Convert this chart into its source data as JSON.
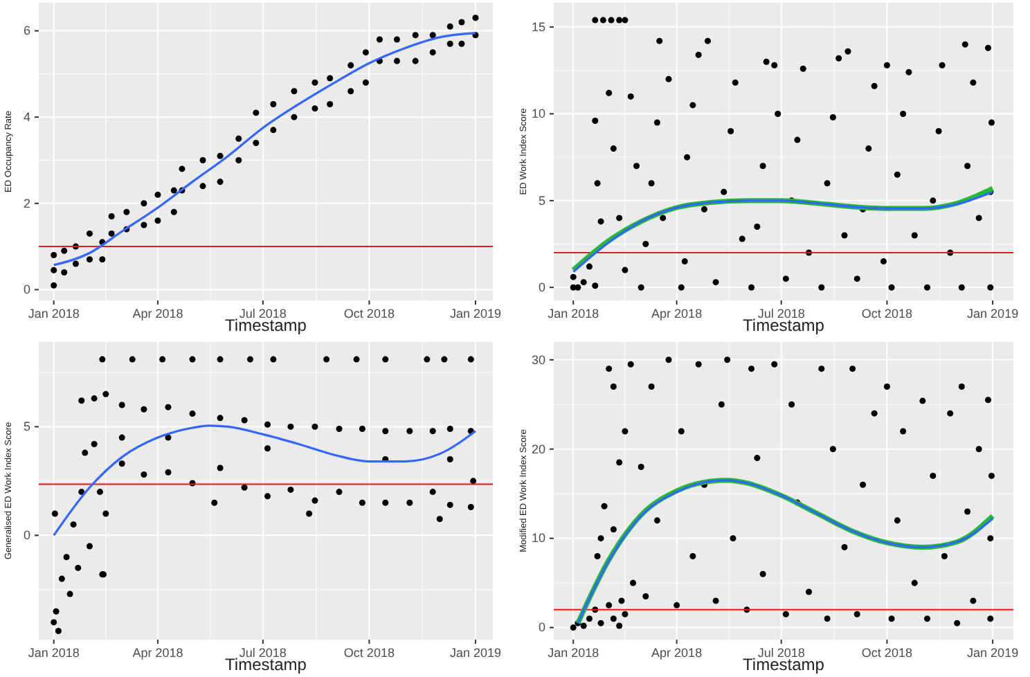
{
  "chart_data": [
    {
      "type": "scatter",
      "xlabel": "Timestamp",
      "ylabel": "ED Occupancy Rate",
      "grid": true,
      "xlim": [
        "2017-12-19",
        "2019-01-16"
      ],
      "xticks": [
        {
          "value": "2018-01-01",
          "label": "Jan 2018"
        },
        {
          "value": "2018-04-01",
          "label": "Apr 2018"
        },
        {
          "value": "2018-07-01",
          "label": "Jul 2018"
        },
        {
          "value": "2018-10-01",
          "label": "Oct 2018"
        },
        {
          "value": "2019-01-01",
          "label": "Jan 2019"
        }
      ],
      "ylim": [
        -0.25,
        6.65
      ],
      "yticks": [
        0,
        2,
        4,
        6
      ],
      "series": [
        {
          "marker": "circle",
          "color": "#000000",
          "x": [
            "2018-01-01",
            "2018-01-01",
            "2018-01-01",
            "2018-01-10",
            "2018-01-10",
            "2018-01-20",
            "2018-01-20",
            "2018-02-01",
            "2018-02-01",
            "2018-02-12",
            "2018-02-12",
            "2018-02-20",
            "2018-02-20",
            "2018-03-05",
            "2018-03-05",
            "2018-03-20",
            "2018-03-20",
            "2018-04-01",
            "2018-04-01",
            "2018-04-15",
            "2018-04-15",
            "2018-04-22",
            "2018-04-22",
            "2018-05-10",
            "2018-05-10",
            "2018-05-25",
            "2018-05-25",
            "2018-06-10",
            "2018-06-10",
            "2018-06-25",
            "2018-06-25",
            "2018-07-10",
            "2018-07-10",
            "2018-07-28",
            "2018-07-28",
            "2018-08-15",
            "2018-08-15",
            "2018-08-28",
            "2018-08-28",
            "2018-09-15",
            "2018-09-15",
            "2018-09-28",
            "2018-09-28",
            "2018-10-10",
            "2018-10-10",
            "2018-10-25",
            "2018-10-25",
            "2018-11-10",
            "2018-11-10",
            "2018-11-25",
            "2018-11-25",
            "2018-12-10",
            "2018-12-10",
            "2018-12-20",
            "2018-12-20",
            "2019-01-01",
            "2019-01-01"
          ],
          "values": [
            0.1,
            0.45,
            0.8,
            0.4,
            0.9,
            0.6,
            1.0,
            0.7,
            1.3,
            0.7,
            1.1,
            1.3,
            1.7,
            1.4,
            1.8,
            1.5,
            2.0,
            1.6,
            2.2,
            1.8,
            2.3,
            2.3,
            2.8,
            2.4,
            3.0,
            2.5,
            3.1,
            3.0,
            3.5,
            3.4,
            4.1,
            3.7,
            4.3,
            4.0,
            4.6,
            4.2,
            4.8,
            4.3,
            4.9,
            4.6,
            5.2,
            4.8,
            5.5,
            5.3,
            5.8,
            5.3,
            5.8,
            5.3,
            5.9,
            5.5,
            5.9,
            5.7,
            6.1,
            5.7,
            6.2,
            5.9,
            6.3
          ]
        },
        {
          "type": "line",
          "color": "#3366ff",
          "x": [
            "2018-01-01",
            "2018-02-01",
            "2018-03-01",
            "2018-04-01",
            "2018-05-01",
            "2018-06-01",
            "2018-07-01",
            "2018-08-01",
            "2018-09-01",
            "2018-10-01",
            "2018-11-01",
            "2018-12-01",
            "2019-01-01"
          ],
          "values": [
            0.57,
            0.85,
            1.35,
            1.9,
            2.5,
            3.1,
            3.75,
            4.3,
            4.8,
            5.25,
            5.6,
            5.85,
            5.95
          ]
        }
      ],
      "ref_lines": [
        {
          "axis": "y",
          "value": 1,
          "color": "#e41a1c"
        }
      ]
    },
    {
      "type": "scatter",
      "xlabel": "Timestamp",
      "ylabel": "ED Work Index Score",
      "grid": true,
      "xlim": [
        "2017-12-15",
        "2019-01-19"
      ],
      "xticks": [
        {
          "value": "2018-01-01",
          "label": "Jan 2018"
        },
        {
          "value": "2018-04-01",
          "label": "Apr 2018"
        },
        {
          "value": "2018-07-01",
          "label": "Jul 2018"
        },
        {
          "value": "2018-10-01",
          "label": "Oct 2018"
        },
        {
          "value": "2019-01-01",
          "label": "Jan 2019"
        }
      ],
      "ylim": [
        -0.75,
        16.4
      ],
      "yticks": [
        0,
        5,
        10,
        15
      ],
      "series": [
        {
          "marker": "circle",
          "color": "#000000",
          "x": [
            "2018-01-01",
            "2018-01-01",
            "2018-01-05",
            "2018-01-10",
            "2018-01-15",
            "2018-01-20",
            "2018-01-20",
            "2018-01-27",
            "2018-02-03",
            "2018-02-10",
            "2018-02-15",
            "2018-01-20",
            "2018-01-22",
            "2018-01-25",
            "2018-02-01",
            "2018-02-05",
            "2018-02-10",
            "2018-02-15",
            "2018-02-20",
            "2018-02-25",
            "2018-03-01",
            "2018-03-05",
            "2018-03-10",
            "2018-03-15",
            "2018-03-17",
            "2018-03-25",
            "2018-03-20",
            "2018-04-05",
            "2018-04-08",
            "2018-04-10",
            "2018-04-15",
            "2018-04-20",
            "2018-04-28",
            "2018-04-25",
            "2018-05-05",
            "2018-05-12",
            "2018-05-18",
            "2018-05-22",
            "2018-05-28",
            "2018-06-05",
            "2018-06-10",
            "2018-06-15",
            "2018-06-18",
            "2018-06-25",
            "2018-06-28",
            "2018-07-05",
            "2018-07-10",
            "2018-07-15",
            "2018-07-20",
            "2018-07-25",
            "2018-08-05",
            "2018-08-10",
            "2018-08-15",
            "2018-08-20",
            "2018-08-28",
            "2018-08-25",
            "2018-09-05",
            "2018-09-10",
            "2018-09-15",
            "2018-09-20",
            "2018-09-28",
            "2018-10-01",
            "2018-10-05",
            "2018-10-10",
            "2018-10-15",
            "2018-10-20",
            "2018-10-25",
            "2018-11-05",
            "2018-11-10",
            "2018-11-15",
            "2018-11-18",
            "2018-11-25",
            "2018-12-05",
            "2018-12-08",
            "2018-12-10",
            "2018-12-15",
            "2018-12-20",
            "2018-12-28",
            "2018-12-30",
            "2018-12-30",
            "2018-12-31"
          ],
          "values": [
            0,
            0.6,
            0,
            0.3,
            1.2,
            0.1,
            15.4,
            15.4,
            15.4,
            15.4,
            15.4,
            9.6,
            6,
            3.8,
            11.2,
            8,
            4,
            1,
            11,
            7,
            0,
            2.5,
            6,
            9.5,
            14.2,
            12,
            4,
            0,
            1.5,
            7.5,
            10.5,
            13.4,
            14.2,
            4.5,
            0.3,
            5.5,
            9,
            11.8,
            2.8,
            0,
            3.5,
            7,
            13,
            12.8,
            10,
            0.5,
            5,
            8.5,
            12.6,
            2,
            0,
            6,
            9.8,
            13.2,
            13.6,
            3,
            0.5,
            4.5,
            8,
            11.6,
            1.5,
            12.8,
            0,
            6.5,
            10,
            12.4,
            3,
            0,
            5,
            9,
            12.8,
            2,
            0,
            14,
            7,
            11.8,
            4,
            13.8,
            0,
            5.5,
            9.5
          ]
        },
        {
          "type": "line",
          "color": "#22bb33",
          "x": [
            "2018-01-01",
            "2018-02-01",
            "2018-03-01",
            "2018-04-01",
            "2018-05-01",
            "2018-06-01",
            "2018-07-01",
            "2018-08-01",
            "2018-09-01",
            "2018-10-01",
            "2018-11-01",
            "2018-12-01",
            "2019-01-01"
          ],
          "values": [
            1.0,
            2.7,
            3.8,
            4.6,
            4.9,
            5.0,
            5.0,
            4.85,
            4.65,
            4.55,
            4.55,
            4.85,
            5.7
          ]
        },
        {
          "type": "line",
          "color": "#3366ff",
          "x": [
            "2018-01-01",
            "2018-02-01",
            "2018-03-01",
            "2018-04-01",
            "2018-05-01",
            "2018-06-01",
            "2018-07-01",
            "2018-08-01",
            "2018-09-01",
            "2018-10-01",
            "2018-11-01",
            "2018-12-01",
            "2019-01-01"
          ],
          "values": [
            0.9,
            2.6,
            3.8,
            4.6,
            4.9,
            5.0,
            5.0,
            4.85,
            4.65,
            4.55,
            4.55,
            4.8,
            5.5
          ]
        }
      ],
      "ref_lines": [
        {
          "axis": "y",
          "value": 2,
          "color": "#e41a1c"
        }
      ]
    },
    {
      "type": "scatter",
      "xlabel": "Timestamp",
      "ylabel": "Generalised ED Work Index Score",
      "grid": true,
      "xlim": [
        "2017-12-19",
        "2019-01-16"
      ],
      "xticks": [
        {
          "value": "2018-01-01",
          "label": "Jan 2018"
        },
        {
          "value": "2018-04-01",
          "label": "Apr 2018"
        },
        {
          "value": "2018-07-01",
          "label": "Jul 2018"
        },
        {
          "value": "2018-10-01",
          "label": "Oct 2018"
        },
        {
          "value": "2019-01-01",
          "label": "Jan 2019"
        }
      ],
      "ylim": [
        -4.8,
        8.9
      ],
      "yticks": [
        0,
        5
      ],
      "series": [
        {
          "marker": "circle",
          "color": "#000000",
          "x": [
            "2018-01-01",
            "2018-01-03",
            "2018-01-05",
            "2018-01-02",
            "2018-01-08",
            "2018-01-12",
            "2018-01-15",
            "2018-01-18",
            "2018-01-22",
            "2018-01-25",
            "2018-01-28",
            "2018-02-01",
            "2018-02-05",
            "2018-02-10",
            "2018-02-12",
            "2018-01-25",
            "2018-02-05",
            "2018-02-15",
            "2018-02-15",
            "2018-02-13",
            "2018-02-12",
            "2018-03-10",
            "2018-04-05",
            "2018-05-01",
            "2018-05-25",
            "2018-06-20",
            "2018-07-10",
            "2018-08-25",
            "2018-09-20",
            "2018-10-15",
            "2018-11-20",
            "2018-12-05",
            "2018-12-28",
            "2018-03-01",
            "2018-03-01",
            "2018-03-20",
            "2018-03-20",
            "2018-04-10",
            "2018-04-10",
            "2018-05-01",
            "2018-05-01",
            "2018-05-20",
            "2018-05-25",
            "2018-05-25",
            "2018-06-15",
            "2018-06-15",
            "2018-07-05",
            "2018-07-05",
            "2018-07-25",
            "2018-07-25",
            "2018-08-10",
            "2018-08-15",
            "2018-08-15",
            "2018-09-05",
            "2018-09-05",
            "2018-09-25",
            "2018-09-25",
            "2018-10-15",
            "2018-10-15",
            "2018-11-05",
            "2018-11-05",
            "2018-11-25",
            "2018-11-25",
            "2018-12-01",
            "2018-12-10",
            "2018-12-10",
            "2018-12-28",
            "2018-12-28",
            "2018-12-30",
            "2018-04-10",
            "2018-07-05",
            "2018-10-15",
            "2018-12-10",
            "2018-03-01"
          ],
          "values": [
            -4,
            -3.5,
            -4.4,
            1,
            -2,
            -1,
            -2.7,
            0.5,
            -1.5,
            2,
            3.8,
            -0.5,
            4.2,
            2,
            -1.8,
            6.2,
            6.3,
            6.5,
            1,
            -1.8,
            8.1,
            8.1,
            8.1,
            8.1,
            8.1,
            8.1,
            8.1,
            8.1,
            8.1,
            8.1,
            8.1,
            8.1,
            8.1,
            6,
            3.3,
            5.8,
            2.8,
            5.9,
            2.9,
            5.6,
            2.4,
            1.5,
            5.4,
            3.1,
            5.3,
            2.2,
            5.1,
            1.8,
            5.0,
            2.1,
            1.0,
            5.0,
            1.6,
            4.9,
            2.0,
            4.9,
            1.5,
            4.8,
            1.5,
            4.8,
            1.5,
            4.8,
            2.0,
            0.75,
            4.9,
            1.4,
            4.8,
            1.3,
            2.5,
            4.5,
            4,
            3.5,
            3.5,
            4.5
          ]
        },
        {
          "type": "line",
          "color": "#3366ff",
          "x": [
            "2018-01-01",
            "2018-02-01",
            "2018-03-01",
            "2018-04-01",
            "2018-05-01",
            "2018-05-15",
            "2018-06-01",
            "2018-07-01",
            "2018-08-01",
            "2018-09-01",
            "2018-10-01",
            "2018-11-01",
            "2018-12-01",
            "2019-01-01"
          ],
          "values": [
            0,
            2.2,
            3.6,
            4.5,
            4.95,
            5.05,
            5.0,
            4.65,
            4.2,
            3.7,
            3.4,
            3.4,
            3.75,
            4.8
          ]
        }
      ],
      "ref_lines": [
        {
          "axis": "y",
          "value": 2.35,
          "color": "#e41a1c"
        }
      ]
    },
    {
      "type": "scatter",
      "xlabel": "Timestamp",
      "ylabel": "Modified ED Work Index Score",
      "grid": true,
      "xlim": [
        "2017-12-15",
        "2019-01-19"
      ],
      "xticks": [
        {
          "value": "2018-01-01",
          "label": "Jan 2018"
        },
        {
          "value": "2018-04-01",
          "label": "Apr 2018"
        },
        {
          "value": "2018-07-01",
          "label": "Jul 2018"
        },
        {
          "value": "2018-10-01",
          "label": "Oct 2018"
        },
        {
          "value": "2019-01-01",
          "label": "Jan 2019"
        }
      ],
      "ylim": [
        -1.35,
        32
      ],
      "yticks": [
        0,
        10,
        20,
        30
      ],
      "series": [
        {
          "marker": "circle",
          "color": "#000000",
          "x": [
            "2018-01-01",
            "2018-01-05",
            "2018-01-10",
            "2018-01-15",
            "2018-01-20",
            "2018-01-25",
            "2018-02-01",
            "2018-02-05",
            "2018-02-10",
            "2018-02-12",
            "2018-02-15",
            "2018-01-22",
            "2018-01-25",
            "2018-01-28",
            "2018-02-01",
            "2018-02-05",
            "2018-02-05",
            "2018-02-10",
            "2018-02-15",
            "2018-02-20",
            "2018-02-22",
            "2018-03-01",
            "2018-03-05",
            "2018-03-10",
            "2018-03-15",
            "2018-03-25",
            "2018-04-01",
            "2018-04-05",
            "2018-04-15",
            "2018-04-20",
            "2018-04-25",
            "2018-05-05",
            "2018-05-10",
            "2018-05-15",
            "2018-05-20",
            "2018-06-01",
            "2018-06-05",
            "2018-06-10",
            "2018-06-15",
            "2018-06-25",
            "2018-07-05",
            "2018-07-10",
            "2018-07-15",
            "2018-07-25",
            "2018-08-05",
            "2018-08-10",
            "2018-08-15",
            "2018-08-25",
            "2018-09-01",
            "2018-09-05",
            "2018-09-10",
            "2018-09-20",
            "2018-10-01",
            "2018-10-05",
            "2018-10-10",
            "2018-10-15",
            "2018-10-25",
            "2018-11-01",
            "2018-11-05",
            "2018-11-10",
            "2018-11-20",
            "2018-11-25",
            "2018-12-01",
            "2018-12-05",
            "2018-12-10",
            "2018-12-15",
            "2018-12-20",
            "2018-12-28",
            "2018-12-30",
            "2018-12-30",
            "2018-12-31"
          ],
          "values": [
            0,
            0.5,
            0.2,
            1,
            2,
            0.5,
            2.5,
            1,
            0.2,
            3,
            1.5,
            8,
            10,
            13.6,
            29,
            27,
            11,
            18.5,
            22,
            29.5,
            5,
            18,
            3.5,
            27,
            12,
            30,
            2.5,
            22,
            8,
            29.5,
            16,
            3,
            25,
            30,
            10,
            2,
            29,
            19,
            6,
            29.5,
            1.5,
            25,
            14,
            4,
            29,
            1,
            20,
            9,
            29,
            1.5,
            16,
            24,
            27,
            1,
            12,
            22,
            5,
            25.4,
            1,
            17,
            8,
            24,
            0.5,
            27,
            13,
            3,
            20,
            25.5,
            1,
            10,
            17
          ]
        },
        {
          "type": "line",
          "color": "#22bb33",
          "x": [
            "2018-01-05",
            "2018-02-01",
            "2018-03-01",
            "2018-04-01",
            "2018-05-01",
            "2018-05-15",
            "2018-06-01",
            "2018-07-01",
            "2018-08-01",
            "2018-09-01",
            "2018-10-01",
            "2018-11-01",
            "2018-12-01",
            "2019-01-01"
          ],
          "values": [
            0.5,
            7.6,
            12.6,
            15.3,
            16.4,
            16.5,
            16.2,
            14.8,
            12.8,
            10.8,
            9.5,
            9.0,
            9.6,
            12.5
          ]
        },
        {
          "type": "line",
          "color": "#3366ff",
          "x": [
            "2018-01-05",
            "2018-02-01",
            "2018-03-01",
            "2018-04-01",
            "2018-05-01",
            "2018-05-15",
            "2018-06-01",
            "2018-07-01",
            "2018-08-01",
            "2018-09-01",
            "2018-10-01",
            "2018-11-01",
            "2018-12-01",
            "2019-01-01"
          ],
          "values": [
            0.5,
            7.5,
            12.5,
            15.2,
            16.4,
            16.5,
            16.2,
            14.8,
            12.8,
            10.8,
            9.5,
            9.0,
            9.6,
            12.2
          ]
        }
      ],
      "ref_lines": [
        {
          "axis": "y",
          "value": 2,
          "color": "#e41a1c"
        }
      ]
    }
  ]
}
